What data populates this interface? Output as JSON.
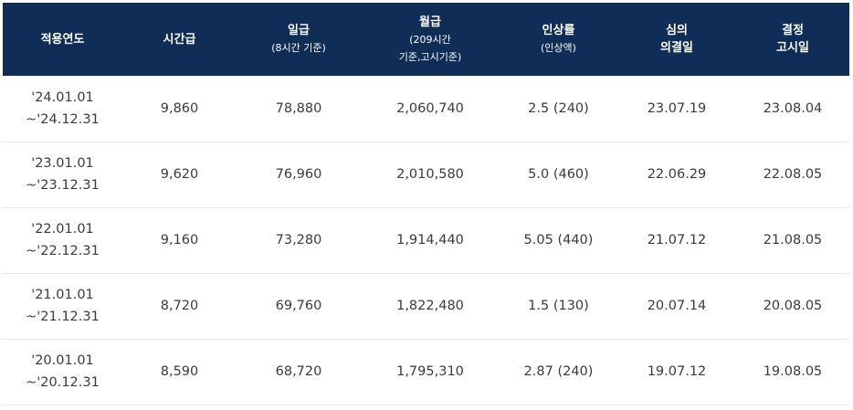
{
  "table": {
    "headers": [
      {
        "main": "적용연도",
        "sub": ""
      },
      {
        "main": "시간급",
        "sub": ""
      },
      {
        "main": "일급",
        "sub": "(8시간 기준)"
      },
      {
        "main": "월급",
        "sub": "(209시간\n기준,고시기준)"
      },
      {
        "main": "인상률",
        "sub": "(인상액)"
      },
      {
        "main": "심의\n의결일",
        "sub": ""
      },
      {
        "main": "결정\n고시일",
        "sub": ""
      }
    ],
    "rows": [
      {
        "period": "'24.01.01\n~'24.12.31",
        "hourly": "9,860",
        "daily": "78,880",
        "monthly": "2,060,740",
        "rate": "2.5 (240)",
        "deliberation": "23.07.19",
        "notice": "23.08.04"
      },
      {
        "period": "'23.01.01\n~'23.12.31",
        "hourly": "9,620",
        "daily": "76,960",
        "monthly": "2,010,580",
        "rate": "5.0 (460)",
        "deliberation": "22.06.29",
        "notice": "22.08.05"
      },
      {
        "period": "'22.01.01\n~'22.12.31",
        "hourly": "9,160",
        "daily": "73,280",
        "monthly": "1,914,440",
        "rate": "5.05 (440)",
        "deliberation": "21.07.12",
        "notice": "21.08.05"
      },
      {
        "period": "'21.01.01\n~'21.12.31",
        "hourly": "8,720",
        "daily": "69,760",
        "monthly": "1,822,480",
        "rate": "1.5 (130)",
        "deliberation": "20.07.14",
        "notice": "20.08.05"
      },
      {
        "period": "'20.01.01\n~'20.12.31",
        "hourly": "8,590",
        "daily": "68,720",
        "monthly": "1,795,310",
        "rate": "2.87 (240)",
        "deliberation": "19.07.12",
        "notice": "19.08.05"
      }
    ]
  }
}
